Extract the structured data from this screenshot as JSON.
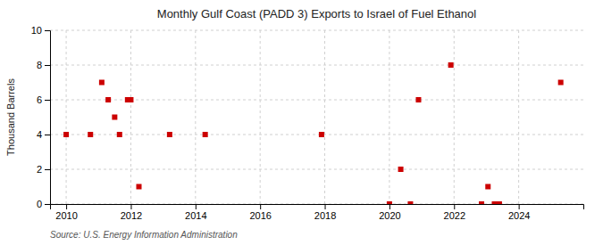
{
  "chart_data": {
    "type": "scatter",
    "title": "Monthly Gulf Coast (PADD 3) Exports to Israel of Fuel Ethanol",
    "ylabel": "Thousand Barrels",
    "source": "Source: U.S. Energy Information Administration",
    "x": [
      2010.0,
      2010.75,
      2011.1,
      2011.3,
      2011.5,
      2011.65,
      2011.9,
      2012.0,
      2012.25,
      2013.2,
      2014.3,
      2017.9,
      2020.0,
      2020.35,
      2020.65,
      2020.9,
      2021.9,
      2022.85,
      2023.05,
      2023.25,
      2023.4,
      2025.3
    ],
    "values": [
      4,
      4,
      7,
      6,
      5,
      4,
      6,
      6,
      1,
      4,
      4,
      4,
      0,
      2,
      0,
      6,
      8,
      0,
      1,
      0,
      0,
      7
    ],
    "color": "#cc0000",
    "marker": "square",
    "xlim": [
      2009.5,
      2026.0
    ],
    "xticks": [
      2010,
      2012,
      2014,
      2016,
      2018,
      2020,
      2022,
      2024
    ],
    "ylim": [
      0,
      10
    ],
    "yticks": [
      0,
      2,
      4,
      6,
      8,
      10
    ],
    "grid": true
  }
}
